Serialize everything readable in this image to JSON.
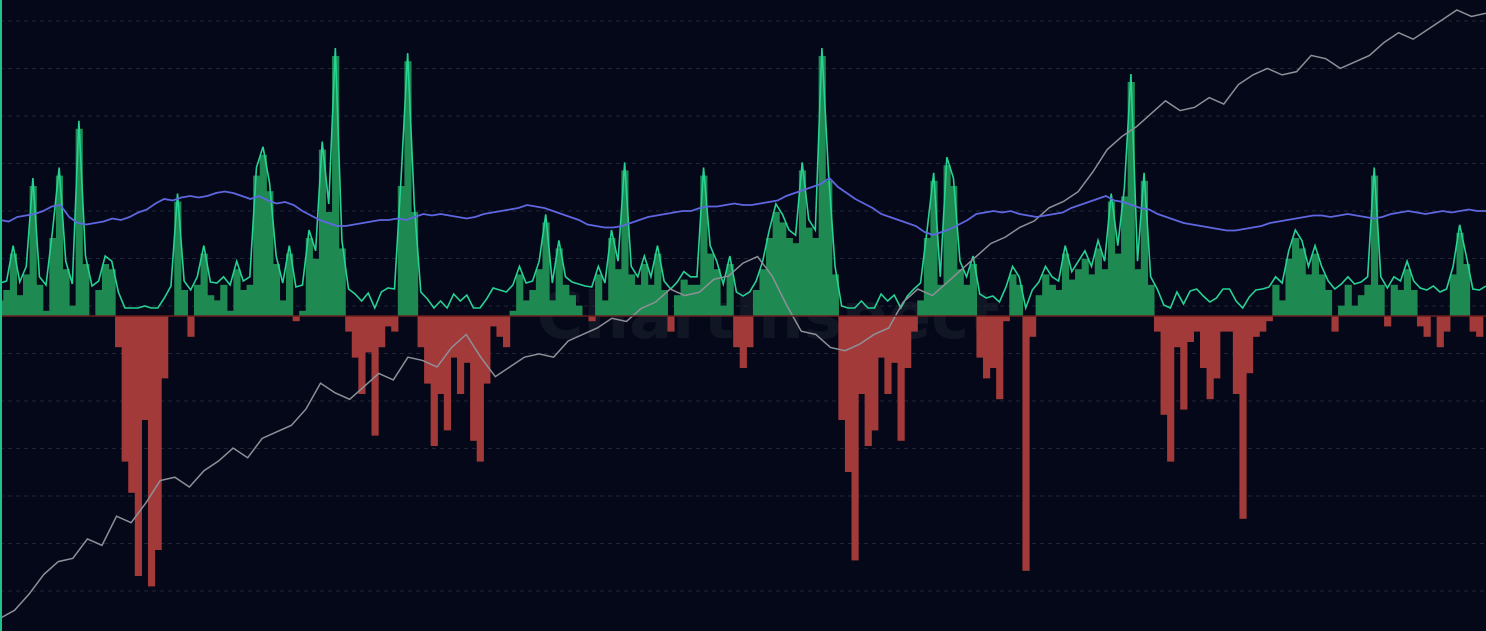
{
  "watermark": "ChartInspect",
  "colors": {
    "background": "#050818",
    "grid": "#1f2737",
    "left_edge": "#1ec38a",
    "oscillator_line": "#27d294",
    "positive_fill": "#1e8a52",
    "negative_fill": "#a33a3a",
    "zero_line": "#6b1e1e",
    "moving_average": "#5f67e0",
    "price": "#8e9098"
  },
  "chart_data": {
    "type": "area",
    "grid": true,
    "series": [
      {
        "values": [
          0.3,
          0.5,
          1.2,
          0.4,
          0.8,
          2.5,
          0.6,
          0.1,
          1.5,
          2.7,
          0.9,
          0.2,
          3.6,
          1.0,
          0.0,
          0.5,
          1.0,
          0.9,
          -0.6,
          -2.8,
          -3.4,
          -5.0,
          -2.0,
          -5.2,
          -4.5,
          -1.2,
          0.0,
          2.2,
          0.5,
          -0.4,
          0.6,
          1.2,
          0.4,
          0.3,
          0.6,
          0.1,
          0.9,
          0.5,
          0.6,
          2.7,
          3.1,
          2.4,
          1.0,
          0.3,
          1.2,
          -0.1,
          0.1,
          1.5,
          1.1,
          3.2,
          2.0,
          5.0,
          1.3,
          -0.3,
          -0.8,
          -1.5,
          -0.7,
          -2.3,
          -0.6,
          -0.2,
          -0.3,
          2.5,
          4.9,
          2.0,
          -0.6,
          -1.3,
          -2.5,
          -1.5,
          -2.2,
          -0.8,
          -1.5,
          -0.9,
          -2.4,
          -2.8,
          -1.3,
          -0.2,
          -0.4,
          -0.6,
          0.1,
          0.8,
          0.3,
          0.5,
          0.9,
          1.8,
          0.3,
          1.3,
          0.6,
          0.4,
          0.2,
          0.0,
          -0.1,
          0.8,
          0.3,
          1.5,
          0.9,
          2.8,
          0.8,
          0.6,
          1.0,
          0.6,
          1.2,
          0.5,
          -0.3,
          0.4,
          0.7,
          0.6,
          0.6,
          2.7,
          1.2,
          0.9,
          0.2,
          1.0,
          -0.6,
          -1.0,
          -0.6,
          0.5,
          0.9,
          1.5,
          2.0,
          1.8,
          1.5,
          1.4,
          2.8,
          1.7,
          1.5,
          5.0,
          2.6,
          0.8,
          -2.0,
          -3.0,
          -4.7,
          -1.5,
          -2.5,
          -2.2,
          -0.8,
          -1.5,
          -0.9,
          -2.4,
          -1.0,
          -0.3,
          0.3,
          1.5,
          2.6,
          0.6,
          2.9,
          2.5,
          0.9,
          0.6,
          1.0,
          -0.8,
          -1.2,
          -1.0,
          -1.6,
          -0.1,
          0.8,
          0.6,
          -4.9,
          -0.4,
          0.4,
          0.8,
          0.6,
          0.5,
          1.2,
          0.7,
          0.9,
          1.1,
          0.8,
          1.3,
          0.9,
          2.2,
          1.2,
          2.3,
          4.5,
          0.9,
          2.6,
          0.6,
          -0.3,
          -1.9,
          -2.8,
          -0.6,
          -1.8,
          -0.5,
          -0.3,
          -1.0,
          -1.6,
          -1.2,
          -0.3,
          -0.3,
          -1.5,
          -3.9,
          -1.1,
          -0.4,
          -0.3,
          -0.1,
          0.6,
          0.3,
          1.1,
          1.5,
          1.3,
          0.8,
          1.2,
          0.8,
          0.5,
          -0.3,
          0.2,
          0.6,
          0.2,
          0.4,
          0.6,
          2.7,
          0.6,
          -0.2,
          0.6,
          0.5,
          0.9,
          0.5,
          -0.2,
          -0.4,
          0.0,
          -0.6,
          -0.3,
          0.8,
          1.6,
          1.0,
          -0.3,
          -0.4,
          0.0
        ]
      },
      {
        "values": [
          1.2,
          1.15,
          1.3,
          1.35,
          1.4,
          1.5,
          1.65,
          1.7,
          1.3,
          1.1,
          1.05,
          1.1,
          1.15,
          1.25,
          1.2,
          1.3,
          1.45,
          1.55,
          1.75,
          1.9,
          1.85,
          1.95,
          2.0,
          1.95,
          2.0,
          2.1,
          2.15,
          2.1,
          2.0,
          1.9,
          2.0,
          1.85,
          1.75,
          1.8,
          1.7,
          1.5,
          1.35,
          1.2,
          1.1,
          1.0,
          1.0,
          1.05,
          1.1,
          1.15,
          1.2,
          1.2,
          1.25,
          1.2,
          1.3,
          1.4,
          1.35,
          1.4,
          1.35,
          1.3,
          1.25,
          1.3,
          1.4,
          1.45,
          1.5,
          1.55,
          1.6,
          1.7,
          1.65,
          1.6,
          1.5,
          1.4,
          1.3,
          1.2,
          1.05,
          1.0,
          0.95,
          0.95,
          1.0,
          1.1,
          1.2,
          1.3,
          1.35,
          1.4,
          1.45,
          1.5,
          1.5,
          1.6,
          1.65,
          1.65,
          1.7,
          1.75,
          1.7,
          1.7,
          1.75,
          1.8,
          1.85,
          2.0,
          2.1,
          2.2,
          2.3,
          2.4,
          2.6,
          2.3,
          2.1,
          1.9,
          1.75,
          1.6,
          1.4,
          1.3,
          1.2,
          1.1,
          1.0,
          0.8,
          0.7,
          0.8,
          0.9,
          1.05,
          1.2,
          1.4,
          1.45,
          1.5,
          1.45,
          1.5,
          1.4,
          1.35,
          1.3,
          1.35,
          1.4,
          1.45,
          1.6,
          1.7,
          1.8,
          1.9,
          2.0,
          1.85,
          1.8,
          1.7,
          1.6,
          1.55,
          1.4,
          1.3,
          1.2,
          1.1,
          1.05,
          1.0,
          0.95,
          0.9,
          0.85,
          0.85,
          0.9,
          0.95,
          1.0,
          1.1,
          1.15,
          1.2,
          1.25,
          1.3,
          1.35,
          1.35,
          1.3,
          1.35,
          1.4,
          1.35,
          1.3,
          1.25,
          1.3,
          1.4,
          1.45,
          1.5,
          1.45,
          1.4,
          1.45,
          1.5,
          1.45,
          1.5,
          1.55,
          1.5,
          1.5
        ]
      }
    ],
    "price": [
      0.05,
      0.3,
      0.8,
      1.4,
      1.8,
      1.9,
      2.5,
      2.3,
      3.2,
      3.0,
      3.6,
      4.3,
      4.4,
      4.1,
      4.6,
      4.9,
      5.3,
      5.0,
      5.6,
      5.8,
      6.0,
      6.5,
      7.3,
      7.0,
      6.8,
      7.2,
      7.6,
      7.4,
      8.1,
      8.0,
      7.8,
      8.4,
      8.8,
      8.1,
      7.5,
      7.8,
      8.1,
      8.2,
      8.1,
      8.6,
      8.8,
      9.0,
      9.3,
      9.2,
      9.6,
      9.8,
      10.2,
      10.0,
      10.1,
      10.5,
      10.6,
      11.0,
      11.2,
      10.6,
      9.7,
      8.9,
      8.8,
      8.4,
      8.3,
      8.5,
      8.8,
      9.0,
      9.8,
      10.2,
      10.0,
      10.4,
      10.8,
      11.2,
      11.6,
      11.8,
      12.1,
      12.3,
      12.7,
      12.9,
      13.2,
      13.8,
      14.5,
      14.9,
      15.2,
      15.6,
      16.0,
      15.7,
      15.8,
      16.1,
      15.9,
      16.5,
      16.8,
      17.0,
      16.8,
      16.9,
      17.4,
      17.3,
      17.0,
      17.2,
      17.4,
      17.8,
      18.1,
      17.9,
      18.2,
      18.5,
      18.8,
      18.6,
      18.7
    ]
  }
}
